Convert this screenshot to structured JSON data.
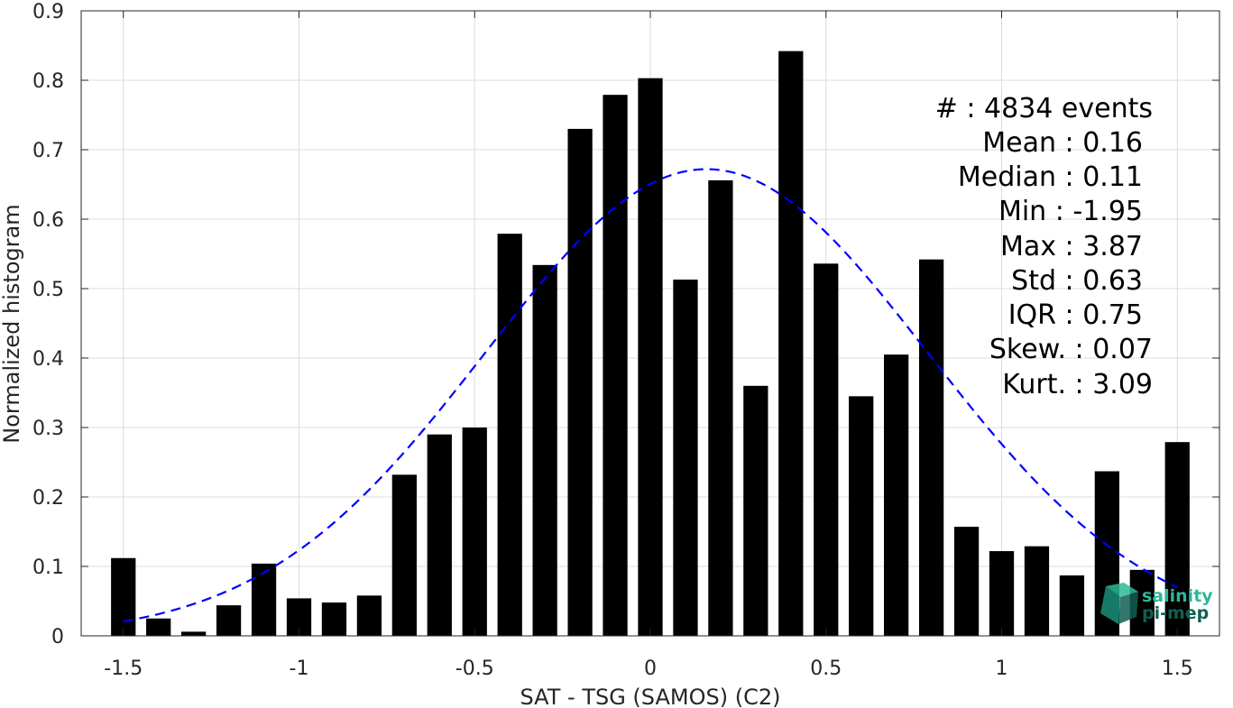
{
  "chart_data": {
    "type": "bar",
    "xlabel": "SAT - TSG (SAMOS) (C2)",
    "ylabel": "Normalized histogram",
    "xlim": [
      -1.62,
      1.62
    ],
    "ylim": [
      0,
      0.9
    ],
    "grid": true,
    "xticks": [
      -1.5,
      -1,
      -0.5,
      0,
      0.5,
      1,
      1.5
    ],
    "xtick_labels": [
      "-1.5",
      "-1",
      "-0.5",
      "0",
      "0.5",
      "1",
      "1.5"
    ],
    "yticks": [
      0,
      0.1,
      0.2,
      0.3,
      0.4,
      0.5,
      0.6,
      0.7,
      0.8,
      0.9
    ],
    "ytick_labels": [
      "0",
      "0.1",
      "0.2",
      "0.3",
      "0.4",
      "0.5",
      "0.6",
      "0.7",
      "0.8",
      "0.9"
    ],
    "bar_width": 0.07,
    "bar_color": "#000000",
    "x": [
      -1.5,
      -1.4,
      -1.3,
      -1.2,
      -1.1,
      -1.0,
      -0.9,
      -0.8,
      -0.7,
      -0.6,
      -0.5,
      -0.4,
      -0.3,
      -0.2,
      -0.1,
      0.0,
      0.1,
      0.2,
      0.3,
      0.4,
      0.5,
      0.6,
      0.7,
      0.8,
      0.9,
      1.0,
      1.1,
      1.2,
      1.3,
      1.4,
      1.5
    ],
    "values": [
      0.112,
      0.025,
      0.006,
      0.044,
      0.104,
      0.054,
      0.048,
      0.058,
      0.232,
      0.29,
      0.3,
      0.579,
      0.534,
      0.73,
      0.779,
      0.803,
      0.513,
      0.656,
      0.36,
      0.842,
      0.536,
      0.345,
      0.405,
      0.542,
      0.157,
      0.122,
      0.129,
      0.087,
      0.237,
      0.095,
      0.279
    ],
    "fit_curve": {
      "style": "dashed",
      "color": "#0000ff",
      "mean": 0.16,
      "std": 0.63,
      "peak": 0.672,
      "x_range": [
        -1.5,
        1.5
      ]
    },
    "stats": [
      {
        "label": "#  : 4834 events"
      },
      {
        "label": "Mean : 0.16"
      },
      {
        "label": "Median : 0.11"
      },
      {
        "label": "Min : -1.95"
      },
      {
        "label": "Max : 3.87"
      },
      {
        "label": "Std : 0.63"
      },
      {
        "label": "IQR : 0.75"
      },
      {
        "label": "Skew. : 0.07"
      },
      {
        "label": "Kurt. : 3.09"
      }
    ]
  },
  "logo": {
    "line1": "salinity",
    "line2": "pi-mep",
    "color_light": "#2bb89a",
    "color_dark": "#0f5f52"
  }
}
